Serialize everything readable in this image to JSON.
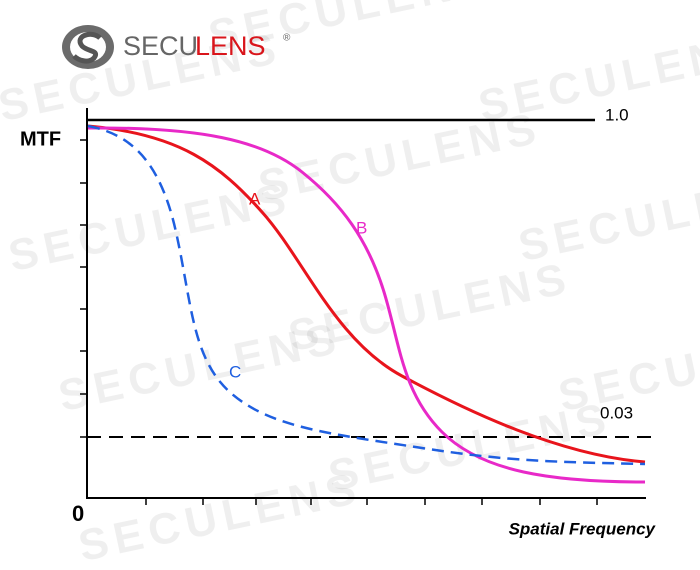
{
  "logo": {
    "part1": "SECU",
    "part2": "LENS",
    "mark": "®"
  },
  "watermark": "SECULENS",
  "axis": {
    "y_label": "MTF",
    "origin": "0",
    "x_label": "Spatial Frequency"
  },
  "reference_lines": {
    "top": "1.0",
    "bottom": "0.03"
  },
  "curves": {
    "a": "A",
    "b": "B",
    "c": "C"
  }
}
